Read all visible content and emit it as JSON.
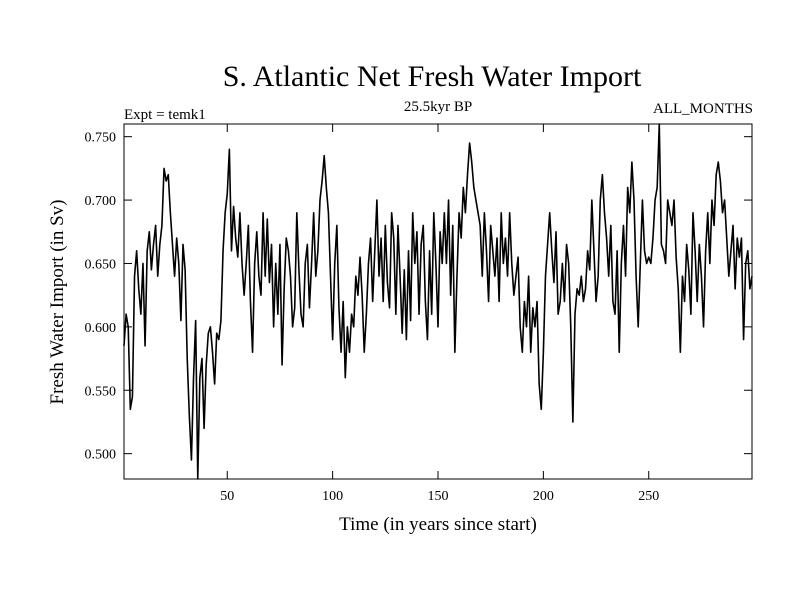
{
  "chart_data": {
    "type": "line",
    "title": "S. Atlantic Net Fresh Water Import",
    "subtitle": "25.5kyr BP",
    "left_label": "Expt = temk1",
    "right_label": "ALL_MONTHS",
    "xlabel": "Time (in years since start)",
    "ylabel": "Fresh Water Import (in Sv)",
    "xlim": [
      1,
      299
    ],
    "ylim": [
      0.48,
      0.76
    ],
    "xticks": [
      50,
      100,
      150,
      200,
      250
    ],
    "yticks": [
      0.5,
      0.55,
      0.6,
      0.65,
      0.7,
      0.75
    ],
    "ytick_labels": [
      "0.500",
      "0.550",
      "0.600",
      "0.650",
      "0.700",
      "0.750"
    ],
    "series": [
      {
        "name": "fresh water import",
        "color": "#000000",
        "points": [
          [
            1,
            0.585
          ],
          [
            2,
            0.61
          ],
          [
            3,
            0.6
          ],
          [
            4,
            0.535
          ],
          [
            5,
            0.545
          ],
          [
            6,
            0.64
          ],
          [
            7,
            0.66
          ],
          [
            8,
            0.63
          ],
          [
            9,
            0.61
          ],
          [
            10,
            0.65
          ],
          [
            11,
            0.585
          ],
          [
            12,
            0.66
          ],
          [
            13,
            0.675
          ],
          [
            14,
            0.645
          ],
          [
            15,
            0.665
          ],
          [
            16,
            0.68
          ],
          [
            17,
            0.64
          ],
          [
            18,
            0.665
          ],
          [
            19,
            0.68
          ],
          [
            20,
            0.725
          ],
          [
            21,
            0.715
          ],
          [
            22,
            0.72
          ],
          [
            23,
            0.69
          ],
          [
            24,
            0.665
          ],
          [
            25,
            0.64
          ],
          [
            26,
            0.67
          ],
          [
            27,
            0.65
          ],
          [
            28,
            0.605
          ],
          [
            29,
            0.665
          ],
          [
            30,
            0.645
          ],
          [
            31,
            0.575
          ],
          [
            32,
            0.53
          ],
          [
            33,
            0.495
          ],
          [
            34,
            0.56
          ],
          [
            35,
            0.605
          ],
          [
            36,
            0.48
          ],
          [
            37,
            0.56
          ],
          [
            38,
            0.575
          ],
          [
            39,
            0.52
          ],
          [
            40,
            0.57
          ],
          [
            41,
            0.595
          ],
          [
            42,
            0.6
          ],
          [
            43,
            0.58
          ],
          [
            44,
            0.555
          ],
          [
            45,
            0.595
          ],
          [
            46,
            0.59
          ],
          [
            47,
            0.605
          ],
          [
            48,
            0.66
          ],
          [
            49,
            0.69
          ],
          [
            50,
            0.705
          ],
          [
            51,
            0.74
          ],
          [
            52,
            0.66
          ],
          [
            53,
            0.695
          ],
          [
            54,
            0.67
          ],
          [
            55,
            0.655
          ],
          [
            56,
            0.69
          ],
          [
            57,
            0.65
          ],
          [
            58,
            0.625
          ],
          [
            59,
            0.65
          ],
          [
            60,
            0.68
          ],
          [
            61,
            0.62
          ],
          [
            62,
            0.58
          ],
          [
            63,
            0.65
          ],
          [
            64,
            0.675
          ],
          [
            65,
            0.64
          ],
          [
            66,
            0.625
          ],
          [
            67,
            0.69
          ],
          [
            68,
            0.64
          ],
          [
            69,
            0.685
          ],
          [
            70,
            0.635
          ],
          [
            71,
            0.665
          ],
          [
            72,
            0.6
          ],
          [
            73,
            0.65
          ],
          [
            74,
            0.61
          ],
          [
            75,
            0.665
          ],
          [
            76,
            0.57
          ],
          [
            77,
            0.63
          ],
          [
            78,
            0.67
          ],
          [
            79,
            0.66
          ],
          [
            80,
            0.64
          ],
          [
            81,
            0.6
          ],
          [
            82,
            0.615
          ],
          [
            83,
            0.69
          ],
          [
            84,
            0.645
          ],
          [
            85,
            0.61
          ],
          [
            86,
            0.6
          ],
          [
            87,
            0.65
          ],
          [
            88,
            0.665
          ],
          [
            89,
            0.615
          ],
          [
            90,
            0.65
          ],
          [
            91,
            0.69
          ],
          [
            92,
            0.64
          ],
          [
            93,
            0.66
          ],
          [
            94,
            0.7
          ],
          [
            95,
            0.715
          ],
          [
            96,
            0.735
          ],
          [
            97,
            0.71
          ],
          [
            98,
            0.69
          ],
          [
            99,
            0.64
          ],
          [
            100,
            0.59
          ],
          [
            101,
            0.65
          ],
          [
            102,
            0.68
          ],
          [
            103,
            0.615
          ],
          [
            104,
            0.58
          ],
          [
            105,
            0.62
          ],
          [
            106,
            0.56
          ],
          [
            107,
            0.6
          ],
          [
            108,
            0.58
          ],
          [
            109,
            0.61
          ],
          [
            110,
            0.6
          ],
          [
            111,
            0.64
          ],
          [
            112,
            0.625
          ],
          [
            113,
            0.655
          ],
          [
            114,
            0.625
          ],
          [
            115,
            0.58
          ],
          [
            116,
            0.61
          ],
          [
            117,
            0.65
          ],
          [
            118,
            0.67
          ],
          [
            119,
            0.62
          ],
          [
            120,
            0.66
          ],
          [
            121,
            0.7
          ],
          [
            122,
            0.64
          ],
          [
            123,
            0.67
          ],
          [
            124,
            0.62
          ],
          [
            125,
            0.68
          ],
          [
            126,
            0.635
          ],
          [
            127,
            0.615
          ],
          [
            128,
            0.69
          ],
          [
            129,
            0.67
          ],
          [
            130,
            0.61
          ],
          [
            131,
            0.68
          ],
          [
            132,
            0.64
          ],
          [
            133,
            0.595
          ],
          [
            134,
            0.645
          ],
          [
            135,
            0.59
          ],
          [
            136,
            0.66
          ],
          [
            137,
            0.605
          ],
          [
            138,
            0.69
          ],
          [
            139,
            0.65
          ],
          [
            140,
            0.675
          ],
          [
            141,
            0.61
          ],
          [
            142,
            0.665
          ],
          [
            143,
            0.68
          ],
          [
            144,
            0.62
          ],
          [
            145,
            0.59
          ],
          [
            146,
            0.66
          ],
          [
            147,
            0.61
          ],
          [
            148,
            0.69
          ],
          [
            149,
            0.65
          ],
          [
            150,
            0.6
          ],
          [
            151,
            0.675
          ],
          [
            152,
            0.65
          ],
          [
            153,
            0.69
          ],
          [
            154,
            0.65
          ],
          [
            155,
            0.7
          ],
          [
            156,
            0.625
          ],
          [
            157,
            0.68
          ],
          [
            158,
            0.58
          ],
          [
            159,
            0.64
          ],
          [
            160,
            0.69
          ],
          [
            161,
            0.67
          ],
          [
            162,
            0.71
          ],
          [
            163,
            0.69
          ],
          [
            164,
            0.72
          ],
          [
            165,
            0.745
          ],
          [
            166,
            0.73
          ],
          [
            167,
            0.71
          ],
          [
            168,
            0.7
          ],
          [
            169,
            0.69
          ],
          [
            170,
            0.68
          ],
          [
            171,
            0.64
          ],
          [
            172,
            0.69
          ],
          [
            173,
            0.66
          ],
          [
            174,
            0.62
          ],
          [
            175,
            0.68
          ],
          [
            176,
            0.66
          ],
          [
            177,
            0.64
          ],
          [
            178,
            0.67
          ],
          [
            179,
            0.62
          ],
          [
            180,
            0.69
          ],
          [
            181,
            0.65
          ],
          [
            182,
            0.67
          ],
          [
            183,
            0.64
          ],
          [
            184,
            0.69
          ],
          [
            185,
            0.65
          ],
          [
            186,
            0.625
          ],
          [
            187,
            0.64
          ],
          [
            188,
            0.655
          ],
          [
            189,
            0.6
          ],
          [
            190,
            0.58
          ],
          [
            191,
            0.62
          ],
          [
            192,
            0.6
          ],
          [
            193,
            0.64
          ],
          [
            194,
            0.58
          ],
          [
            195,
            0.615
          ],
          [
            196,
            0.6
          ],
          [
            197,
            0.62
          ],
          [
            198,
            0.555
          ],
          [
            199,
            0.535
          ],
          [
            200,
            0.58
          ],
          [
            201,
            0.64
          ],
          [
            202,
            0.665
          ],
          [
            203,
            0.69
          ],
          [
            204,
            0.66
          ],
          [
            205,
            0.635
          ],
          [
            206,
            0.675
          ],
          [
            207,
            0.61
          ],
          [
            208,
            0.62
          ],
          [
            209,
            0.65
          ],
          [
            210,
            0.62
          ],
          [
            211,
            0.665
          ],
          [
            212,
            0.65
          ],
          [
            213,
            0.6
          ],
          [
            214,
            0.525
          ],
          [
            215,
            0.61
          ],
          [
            216,
            0.63
          ],
          [
            217,
            0.625
          ],
          [
            218,
            0.64
          ],
          [
            219,
            0.62
          ],
          [
            220,
            0.63
          ],
          [
            221,
            0.66
          ],
          [
            222,
            0.645
          ],
          [
            223,
            0.7
          ],
          [
            224,
            0.66
          ],
          [
            225,
            0.62
          ],
          [
            226,
            0.64
          ],
          [
            227,
            0.7
          ],
          [
            228,
            0.72
          ],
          [
            229,
            0.69
          ],
          [
            230,
            0.67
          ],
          [
            231,
            0.64
          ],
          [
            232,
            0.68
          ],
          [
            233,
            0.62
          ],
          [
            234,
            0.61
          ],
          [
            235,
            0.66
          ],
          [
            236,
            0.58
          ],
          [
            237,
            0.65
          ],
          [
            238,
            0.68
          ],
          [
            239,
            0.64
          ],
          [
            240,
            0.71
          ],
          [
            241,
            0.69
          ],
          [
            242,
            0.73
          ],
          [
            243,
            0.7
          ],
          [
            244,
            0.64
          ],
          [
            245,
            0.6
          ],
          [
            246,
            0.65
          ],
          [
            247,
            0.7
          ],
          [
            248,
            0.66
          ],
          [
            249,
            0.65
          ],
          [
            250,
            0.655
          ],
          [
            251,
            0.65
          ],
          [
            252,
            0.67
          ],
          [
            253,
            0.7
          ],
          [
            254,
            0.71
          ],
          [
            255,
            0.76
          ],
          [
            256,
            0.665
          ],
          [
            257,
            0.66
          ],
          [
            258,
            0.65
          ],
          [
            259,
            0.7
          ],
          [
            260,
            0.69
          ],
          [
            261,
            0.68
          ],
          [
            262,
            0.7
          ],
          [
            263,
            0.655
          ],
          [
            264,
            0.63
          ],
          [
            265,
            0.58
          ],
          [
            266,
            0.64
          ],
          [
            267,
            0.62
          ],
          [
            268,
            0.665
          ],
          [
            269,
            0.645
          ],
          [
            270,
            0.61
          ],
          [
            271,
            0.69
          ],
          [
            272,
            0.66
          ],
          [
            273,
            0.62
          ],
          [
            274,
            0.665
          ],
          [
            275,
            0.64
          ],
          [
            276,
            0.6
          ],
          [
            277,
            0.66
          ],
          [
            278,
            0.69
          ],
          [
            279,
            0.65
          ],
          [
            280,
            0.7
          ],
          [
            281,
            0.68
          ],
          [
            282,
            0.72
          ],
          [
            283,
            0.73
          ],
          [
            284,
            0.715
          ],
          [
            285,
            0.69
          ],
          [
            286,
            0.7
          ],
          [
            287,
            0.67
          ],
          [
            288,
            0.64
          ],
          [
            289,
            0.66
          ],
          [
            290,
            0.68
          ],
          [
            291,
            0.63
          ],
          [
            292,
            0.67
          ],
          [
            293,
            0.655
          ],
          [
            294,
            0.67
          ],
          [
            295,
            0.59
          ],
          [
            296,
            0.65
          ],
          [
            297,
            0.66
          ],
          [
            298,
            0.63
          ],
          [
            299,
            0.64
          ]
        ]
      }
    ]
  }
}
